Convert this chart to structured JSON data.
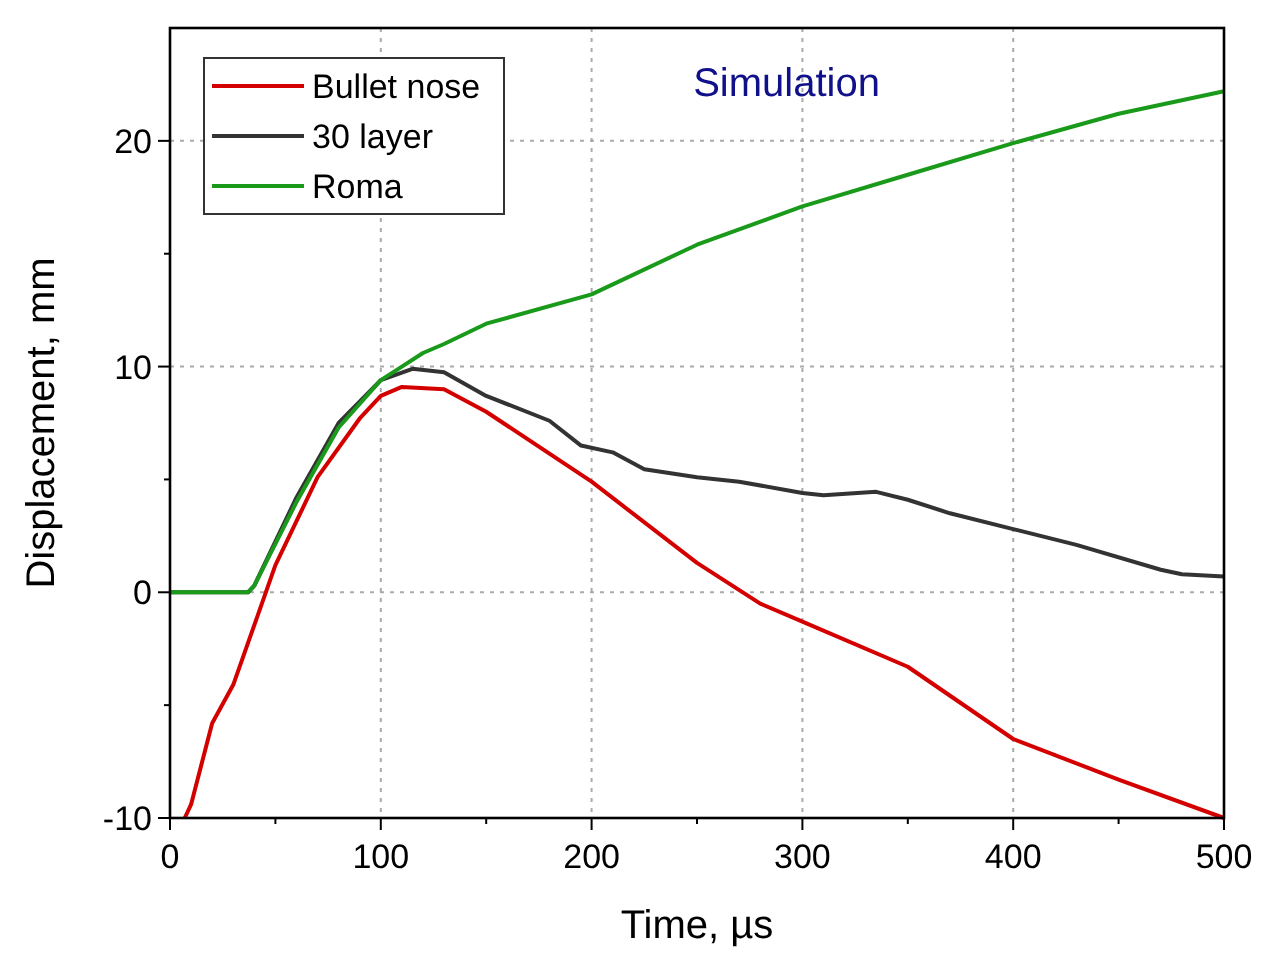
{
  "chart_data": {
    "type": "line",
    "title": "Simulation",
    "xlabel": "Time, µs",
    "ylabel": "Displacement, mm",
    "xlim": [
      0,
      500
    ],
    "ylim": [
      -10,
      25
    ],
    "xticks": [
      0,
      {
        "value": 50,
        "label": null
      },
      100,
      {
        "value": 150,
        "label": null
      },
      200,
      {
        "value": 250,
        "label": null
      },
      300,
      {
        "value": 350,
        "label": null
      },
      400,
      {
        "value": 450,
        "label": null
      },
      500
    ],
    "yticks": [
      -10,
      {
        "value": -5,
        "label": null
      },
      0,
      {
        "value": 5,
        "label": null
      },
      10,
      {
        "value": 15,
        "label": null
      },
      20
    ],
    "grid": true,
    "legend": "top left",
    "line_style": "solid",
    "series": [
      {
        "name": "Bullet nose",
        "color": "#d40000",
        "x": [
          7,
          10,
          20,
          30,
          50,
          70,
          90,
          100,
          110,
          130,
          150,
          200,
          250,
          280,
          300,
          350,
          400,
          450,
          500
        ],
        "values": [
          -10,
          -9.4,
          -5.8,
          -4.1,
          1.2,
          5.1,
          7.7,
          8.7,
          9.1,
          9.0,
          8.0,
          4.9,
          1.3,
          -0.5,
          -1.3,
          -3.3,
          -6.5,
          -8.3,
          -10
        ]
      },
      {
        "name": "30 layer",
        "color": "#333333",
        "x": [
          0,
          37,
          40,
          60,
          80,
          100,
          115,
          130,
          150,
          180,
          195,
          210,
          225,
          250,
          270,
          300,
          310,
          335,
          350,
          370,
          400,
          430,
          470,
          480,
          500
        ],
        "values": [
          0,
          0,
          0.3,
          4.2,
          7.5,
          9.4,
          9.9,
          9.75,
          8.7,
          7.6,
          6.5,
          6.2,
          5.45,
          5.1,
          4.9,
          4.4,
          4.3,
          4.45,
          4.1,
          3.5,
          2.8,
          2.1,
          1.0,
          0.8,
          0.7
        ]
      },
      {
        "name": "Roma",
        "color": "#1a9a1a",
        "x": [
          0,
          37,
          40,
          60,
          80,
          100,
          110,
          120,
          130,
          150,
          200,
          250,
          300,
          350,
          400,
          450,
          500
        ],
        "values": [
          0,
          0,
          0.3,
          4.0,
          7.3,
          9.4,
          10.0,
          10.6,
          11.0,
          11.9,
          13.2,
          15.4,
          17.1,
          18.5,
          19.9,
          21.2,
          22.2
        ]
      }
    ]
  }
}
